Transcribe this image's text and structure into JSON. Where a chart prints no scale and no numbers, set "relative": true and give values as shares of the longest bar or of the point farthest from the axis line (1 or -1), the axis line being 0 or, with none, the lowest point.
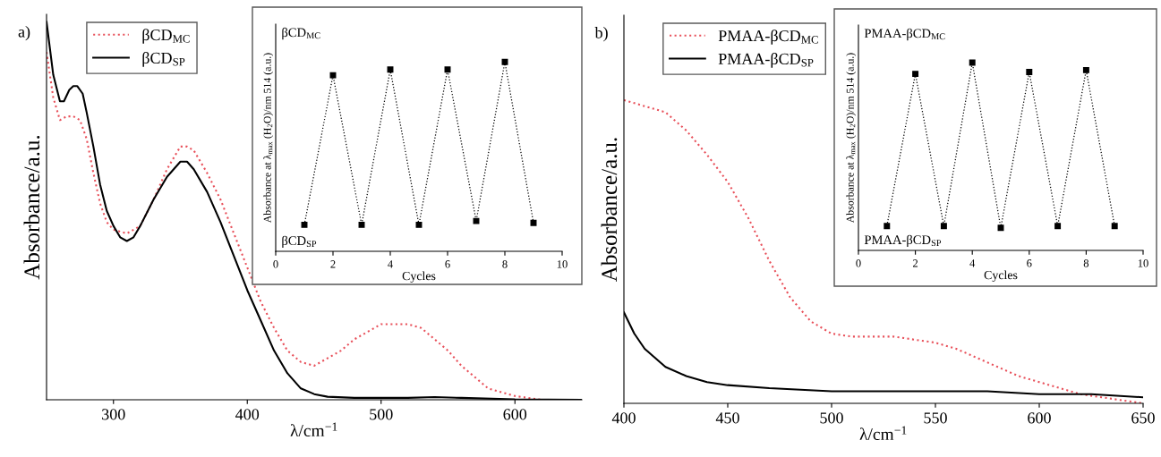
{
  "chart_data": [
    {
      "type": "line",
      "title": "a)",
      "xlabel": "λ/cm$^{−1}$",
      "ylabel": "Absorbance/a.u.",
      "relative": true,
      "xlim": [
        250,
        650
      ],
      "xticks": [
        300,
        400,
        500,
        600
      ],
      "tick_labels": "x",
      "legend": "top left",
      "grid": false,
      "series": [
        {
          "name": "βCD$_{MC}$",
          "color": "#e8505a",
          "line_style": "dotted",
          "x": [
            250,
            255,
            260,
            265,
            270,
            275,
            280,
            285,
            290,
            295,
            300,
            310,
            320,
            330,
            340,
            350,
            355,
            360,
            370,
            380,
            390,
            400,
            410,
            420,
            430,
            440,
            450,
            460,
            470,
            480,
            490,
            500,
            510,
            520,
            530,
            540,
            550,
            560,
            570,
            580,
            590,
            600,
            620,
            650
          ],
          "values": [
            0.92,
            0.8,
            0.74,
            0.75,
            0.75,
            0.74,
            0.69,
            0.6,
            0.52,
            0.47,
            0.45,
            0.44,
            0.46,
            0.53,
            0.61,
            0.67,
            0.67,
            0.66,
            0.6,
            0.53,
            0.44,
            0.35,
            0.26,
            0.19,
            0.13,
            0.1,
            0.09,
            0.11,
            0.13,
            0.16,
            0.18,
            0.2,
            0.2,
            0.2,
            0.19,
            0.16,
            0.13,
            0.09,
            0.06,
            0.03,
            0.02,
            0.01,
            0,
            0
          ]
        },
        {
          "name": "βCD$_{SP}$",
          "color": "#000000",
          "line_style": "solid",
          "x": [
            250,
            255,
            260,
            263,
            267,
            270,
            273,
            277,
            280,
            285,
            290,
            295,
            300,
            305,
            310,
            315,
            320,
            330,
            340,
            350,
            355,
            360,
            370,
            380,
            390,
            400,
            410,
            420,
            430,
            440,
            450,
            460,
            480,
            520,
            540,
            560,
            600,
            650
          ],
          "values": [
            1,
            0.86,
            0.79,
            0.79,
            0.82,
            0.83,
            0.83,
            0.81,
            0.76,
            0.67,
            0.57,
            0.5,
            0.46,
            0.43,
            0.42,
            0.43,
            0.46,
            0.53,
            0.59,
            0.63,
            0.63,
            0.61,
            0.55,
            0.47,
            0.38,
            0.29,
            0.21,
            0.13,
            0.07,
            0.03,
            0.015,
            0.008,
            0.005,
            0.005,
            0.007,
            0.005,
            0.001,
            0
          ]
        }
      ]
    },
    {
      "type": "line",
      "xlabel": "Cycles",
      "ylabel": "Absorbance at λ$_{max}$ (H$_{2}$O)/nm 514 (a.u.)",
      "relative": true,
      "xlim": [
        0,
        10
      ],
      "xticks": [
        0,
        2,
        4,
        6,
        8,
        10
      ],
      "tick_labels": "x",
      "grid": false,
      "legend": false,
      "marker": "square",
      "line_style": "dotted",
      "annotations": [
        "βCD$_{MC}$",
        "βCD$_{SP}$"
      ],
      "series": [
        {
          "color": "#000000",
          "x": [
            1,
            2,
            3,
            4,
            5,
            6,
            7,
            8,
            9
          ],
          "values": [
            0.14,
            0.93,
            0.14,
            0.96,
            0.14,
            0.96,
            0.16,
            1,
            0.15
          ]
        }
      ]
    },
    {
      "type": "line",
      "title": "b)",
      "xlabel": "λ/cm$^{−1}$",
      "ylabel": "Absorbance/a.u.",
      "relative": true,
      "xlim": [
        400,
        650
      ],
      "xticks": [
        400,
        450,
        500,
        550,
        600,
        650
      ],
      "tick_labels": "x",
      "legend": "top left",
      "grid": false,
      "series": [
        {
          "name": "PMAA-βCD$_{MC}$",
          "color": "#e8505a",
          "line_style": "dotted",
          "x": [
            400,
            410,
            420,
            430,
            440,
            450,
            460,
            470,
            480,
            490,
            500,
            510,
            520,
            530,
            540,
            550,
            560,
            570,
            580,
            590,
            600,
            610,
            620,
            630,
            640,
            650
          ],
          "values": [
            1,
            0.98,
            0.96,
            0.9,
            0.82,
            0.73,
            0.61,
            0.47,
            0.35,
            0.27,
            0.23,
            0.22,
            0.22,
            0.22,
            0.21,
            0.2,
            0.18,
            0.15,
            0.12,
            0.09,
            0.07,
            0.05,
            0.03,
            0.02,
            0.01,
            0
          ]
        },
        {
          "name": "PMAA-βCD$_{SP}$",
          "color": "#000000",
          "line_style": "solid",
          "x": [
            400,
            405,
            410,
            420,
            430,
            440,
            450,
            470,
            500,
            530,
            550,
            575,
            600,
            625,
            650
          ],
          "values": [
            0.3,
            0.23,
            0.18,
            0.12,
            0.09,
            0.07,
            0.06,
            0.05,
            0.04,
            0.04,
            0.04,
            0.04,
            0.03,
            0.03,
            0.02
          ]
        }
      ]
    },
    {
      "type": "line",
      "xlabel": "Cycles",
      "ylabel": "Absorbance at λ$_{max}$ (H$_{2}$O)/nm 514 (a.u.)",
      "relative": true,
      "xlim": [
        0,
        10
      ],
      "xticks": [
        0,
        2,
        4,
        6,
        8,
        10
      ],
      "tick_labels": "x",
      "grid": false,
      "legend": false,
      "marker": "square",
      "line_style": "dotted",
      "annotations": [
        "PMAA-βCD$_{MC}$",
        "PMAA-βCD$_{SP}$"
      ],
      "series": [
        {
          "color": "#000000",
          "x": [
            1,
            2,
            3,
            4,
            5,
            6,
            7,
            8,
            9
          ],
          "values": [
            0.13,
            0.94,
            0.13,
            1,
            0.12,
            0.95,
            0.13,
            0.96,
            0.13
          ]
        }
      ]
    }
  ]
}
